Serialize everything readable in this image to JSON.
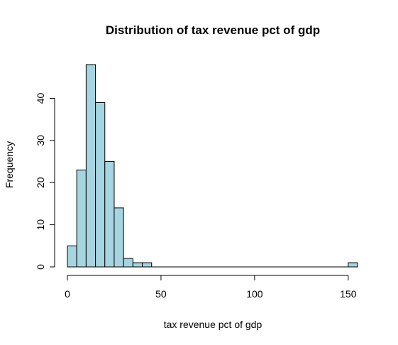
{
  "chart_data": {
    "type": "bar",
    "title": "Distribution of tax revenue pct of gdp",
    "xlabel": "tax revenue pct of gdp",
    "ylabel": "Frequency",
    "bin_width": 5,
    "bins": [
      {
        "x0": 0,
        "x1": 5,
        "count": 5
      },
      {
        "x0": 5,
        "x1": 10,
        "count": 23
      },
      {
        "x0": 10,
        "x1": 15,
        "count": 48
      },
      {
        "x0": 15,
        "x1": 20,
        "count": 39
      },
      {
        "x0": 20,
        "x1": 25,
        "count": 25
      },
      {
        "x0": 25,
        "x1": 30,
        "count": 14
      },
      {
        "x0": 30,
        "x1": 35,
        "count": 2
      },
      {
        "x0": 35,
        "x1": 40,
        "count": 1
      },
      {
        "x0": 40,
        "x1": 45,
        "count": 1
      },
      {
        "x0": 150,
        "x1": 155,
        "count": 1
      }
    ],
    "xlim": [
      0,
      155
    ],
    "ylim": [
      0,
      48
    ],
    "x_ticks": [
      0,
      50,
      100,
      150
    ],
    "y_ticks": [
      0,
      10,
      20,
      30,
      40
    ],
    "bar_color": "#a6d4e1",
    "edge_color": "#000000",
    "grid": false,
    "legend": "none"
  }
}
